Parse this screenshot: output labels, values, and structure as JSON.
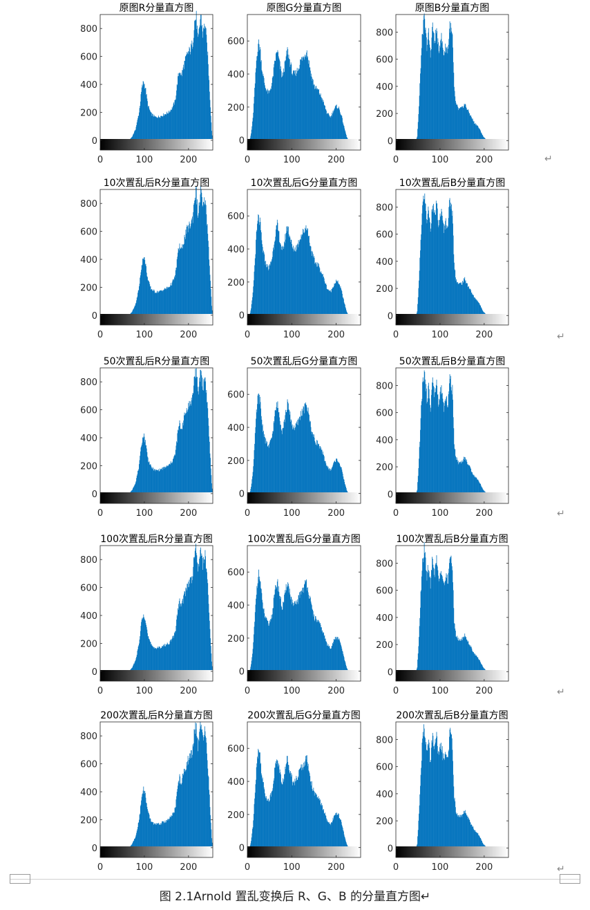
{
  "caption": "图 2.1Arnold 置乱变换后 R、G、B 的分量直方图↵",
  "colors": {
    "bar": "#0072BD",
    "axis": "#262626",
    "grid_text": "#262626"
  },
  "paragraph_mark": "↵",
  "chart_data": [
    {
      "type": "bar",
      "title": "原图R分量直方图",
      "channel": "R",
      "xticks": [
        0,
        100,
        200
      ],
      "yticks": [
        0,
        200,
        400,
        600,
        800
      ],
      "xlim": [
        0,
        255
      ],
      "ylim": [
        -70,
        900
      ]
    },
    {
      "type": "bar",
      "title": "原图G分量直方图",
      "channel": "G",
      "xticks": [
        0,
        100,
        200
      ],
      "yticks": [
        0,
        200,
        400,
        600
      ],
      "xlim": [
        0,
        255
      ],
      "ylim": [
        -60,
        760
      ]
    },
    {
      "type": "bar",
      "title": "原图B分量直方图",
      "channel": "B",
      "xticks": [
        0,
        100,
        200
      ],
      "yticks": [
        0,
        200,
        400,
        600,
        800
      ],
      "xlim": [
        0,
        255
      ],
      "ylim": [
        -70,
        930
      ]
    },
    {
      "type": "bar",
      "title": "10次置乱后R分量直方图",
      "channel": "R",
      "xticks": [
        0,
        100,
        200
      ],
      "yticks": [
        0,
        200,
        400,
        600,
        800
      ],
      "xlim": [
        0,
        255
      ],
      "ylim": [
        -70,
        900
      ]
    },
    {
      "type": "bar",
      "title": "10次置乱后G分量直方图",
      "channel": "G",
      "xticks": [
        0,
        100,
        200
      ],
      "yticks": [
        0,
        200,
        400,
        600
      ],
      "xlim": [
        0,
        255
      ],
      "ylim": [
        -60,
        760
      ]
    },
    {
      "type": "bar",
      "title": "10次置乱后B分量直方图",
      "channel": "B",
      "xticks": [
        0,
        100,
        200
      ],
      "yticks": [
        0,
        200,
        400,
        600,
        800
      ],
      "xlim": [
        0,
        255
      ],
      "ylim": [
        -70,
        930
      ]
    },
    {
      "type": "bar",
      "title": "50次置乱后R分量直方图",
      "channel": "R",
      "xticks": [
        0,
        100,
        200
      ],
      "yticks": [
        0,
        200,
        400,
        600,
        800
      ],
      "xlim": [
        0,
        255
      ],
      "ylim": [
        -70,
        900
      ]
    },
    {
      "type": "bar",
      "title": "50次置乱后G分量直方图",
      "channel": "G",
      "xticks": [
        0,
        100,
        200
      ],
      "yticks": [
        0,
        200,
        400,
        600
      ],
      "xlim": [
        0,
        255
      ],
      "ylim": [
        -60,
        760
      ]
    },
    {
      "type": "bar",
      "title": "50次置乱后B分量直方图",
      "channel": "B",
      "xticks": [
        0,
        100,
        200
      ],
      "yticks": [
        0,
        200,
        400,
        600,
        800
      ],
      "xlim": [
        0,
        255
      ],
      "ylim": [
        -70,
        930
      ]
    },
    {
      "type": "bar",
      "title": "100次置乱后R分量直方图",
      "channel": "R",
      "xticks": [
        0,
        100,
        200
      ],
      "yticks": [
        0,
        200,
        400,
        600,
        800
      ],
      "xlim": [
        0,
        255
      ],
      "ylim": [
        -70,
        900
      ]
    },
    {
      "type": "bar",
      "title": "100次置乱后G分量直方图",
      "channel": "G",
      "xticks": [
        0,
        100,
        200
      ],
      "yticks": [
        0,
        200,
        400,
        600
      ],
      "xlim": [
        0,
        255
      ],
      "ylim": [
        -60,
        760
      ]
    },
    {
      "type": "bar",
      "title": "100次置乱后B分量直方图",
      "channel": "B",
      "xticks": [
        0,
        100,
        200
      ],
      "yticks": [
        0,
        200,
        400,
        600,
        800
      ],
      "xlim": [
        0,
        255
      ],
      "ylim": [
        -70,
        930
      ]
    },
    {
      "type": "bar",
      "title": "200次置乱后R分量直方图",
      "channel": "R",
      "xticks": [
        0,
        100,
        200
      ],
      "yticks": [
        0,
        200,
        400,
        600,
        800
      ],
      "xlim": [
        0,
        255
      ],
      "ylim": [
        -70,
        900
      ]
    },
    {
      "type": "bar",
      "title": "200次置乱后G分量直方图",
      "channel": "G",
      "xticks": [
        0,
        100,
        200
      ],
      "yticks": [
        0,
        200,
        400,
        600
      ],
      "xlim": [
        0,
        255
      ],
      "ylim": [
        -60,
        760
      ]
    },
    {
      "type": "bar",
      "title": "200次置乱后B分量直方图",
      "channel": "B",
      "xticks": [
        0,
        100,
        200
      ],
      "yticks": [
        0,
        200,
        400,
        600,
        800
      ],
      "xlim": [
        0,
        255
      ],
      "ylim": [
        -70,
        930
      ]
    }
  ],
  "channel_profiles": {
    "R": [
      [
        0,
        0
      ],
      [
        65,
        0
      ],
      [
        72,
        25
      ],
      [
        80,
        80
      ],
      [
        88,
        200
      ],
      [
        94,
        370
      ],
      [
        98,
        420
      ],
      [
        102,
        380
      ],
      [
        108,
        250
      ],
      [
        115,
        190
      ],
      [
        125,
        165
      ],
      [
        135,
        170
      ],
      [
        145,
        185
      ],
      [
        155,
        200
      ],
      [
        163,
        230
      ],
      [
        170,
        280
      ],
      [
        176,
        440
      ],
      [
        180,
        500
      ],
      [
        184,
        460
      ],
      [
        190,
        540
      ],
      [
        198,
        620
      ],
      [
        205,
        650
      ],
      [
        210,
        700
      ],
      [
        214,
        850
      ],
      [
        218,
        880
      ],
      [
        222,
        700
      ],
      [
        228,
        900
      ],
      [
        233,
        760
      ],
      [
        238,
        840
      ],
      [
        244,
        600
      ],
      [
        249,
        300
      ],
      [
        253,
        70
      ],
      [
        255,
        0
      ]
    ],
    "G": [
      [
        0,
        0
      ],
      [
        5,
        0
      ],
      [
        8,
        40
      ],
      [
        12,
        130
      ],
      [
        16,
        300
      ],
      [
        20,
        480
      ],
      [
        24,
        590
      ],
      [
        28,
        560
      ],
      [
        33,
        420
      ],
      [
        40,
        320
      ],
      [
        48,
        280
      ],
      [
        55,
        340
      ],
      [
        62,
        480
      ],
      [
        67,
        545
      ],
      [
        72,
        470
      ],
      [
        78,
        380
      ],
      [
        84,
        450
      ],
      [
        90,
        545
      ],
      [
        96,
        470
      ],
      [
        102,
        400
      ],
      [
        108,
        400
      ],
      [
        114,
        430
      ],
      [
        120,
        480
      ],
      [
        128,
        510
      ],
      [
        133,
        545
      ],
      [
        138,
        480
      ],
      [
        145,
        380
      ],
      [
        152,
        320
      ],
      [
        160,
        300
      ],
      [
        170,
        240
      ],
      [
        180,
        160
      ],
      [
        188,
        140
      ],
      [
        195,
        185
      ],
      [
        200,
        205
      ],
      [
        206,
        195
      ],
      [
        212,
        150
      ],
      [
        218,
        80
      ],
      [
        224,
        20
      ],
      [
        228,
        0
      ],
      [
        255,
        0
      ]
    ],
    "B": [
      [
        0,
        0
      ],
      [
        45,
        0
      ],
      [
        48,
        30
      ],
      [
        52,
        250
      ],
      [
        56,
        560
      ],
      [
        60,
        800
      ],
      [
        64,
        900
      ],
      [
        70,
        700
      ],
      [
        74,
        790
      ],
      [
        78,
        620
      ],
      [
        83,
        860
      ],
      [
        87,
        720
      ],
      [
        92,
        820
      ],
      [
        97,
        650
      ],
      [
        102,
        780
      ],
      [
        108,
        640
      ],
      [
        113,
        690
      ],
      [
        118,
        670
      ],
      [
        122,
        860
      ],
      [
        128,
        760
      ],
      [
        132,
        380
      ],
      [
        136,
        270
      ],
      [
        142,
        230
      ],
      [
        150,
        240
      ],
      [
        156,
        270
      ],
      [
        162,
        230
      ],
      [
        170,
        180
      ],
      [
        178,
        130
      ],
      [
        185,
        110
      ],
      [
        192,
        70
      ],
      [
        198,
        30
      ],
      [
        204,
        10
      ],
      [
        210,
        0
      ],
      [
        255,
        0
      ]
    ]
  }
}
